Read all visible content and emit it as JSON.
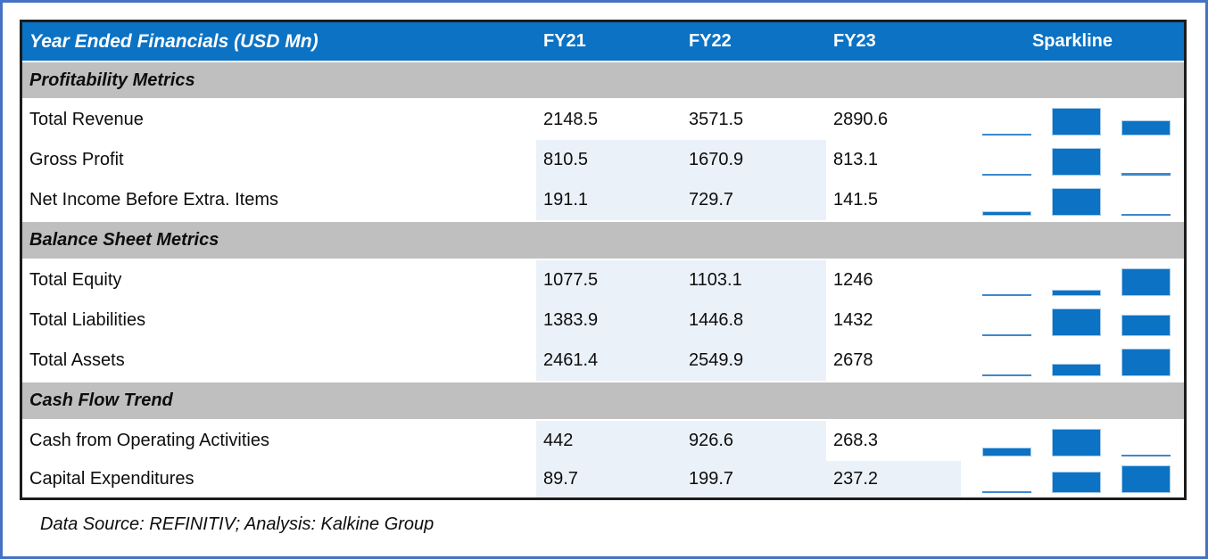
{
  "title": "Year Ended Financials (USD Mn)",
  "sparkline_label": "Sparkline",
  "chart_data": {
    "type": "table",
    "title": "Year Ended Financials (USD Mn)",
    "categories": [
      "FY21",
      "FY22",
      "FY23"
    ],
    "sections": [
      {
        "title": "Profitability Metrics",
        "rows": [
          {
            "label": "Total Revenue",
            "values": [
              2148.5,
              3571.5,
              2890.6
            ]
          },
          {
            "label": "Gross Profit",
            "values": [
              810.5,
              1670.9,
              813.1
            ]
          },
          {
            "label": "Net Income Before Extra. Items",
            "values": [
              191.1,
              729.7,
              141.5
            ]
          }
        ]
      },
      {
        "title": "Balance Sheet Metrics",
        "rows": [
          {
            "label": "Total Equity",
            "values": [
              1077.5,
              1103.1,
              1246
            ]
          },
          {
            "label": "Total Liabilities",
            "values": [
              1383.9,
              1446.8,
              1432
            ]
          },
          {
            "label": "Total Assets",
            "values": [
              2461.4,
              2549.9,
              2678
            ]
          }
        ]
      },
      {
        "title": "Cash Flow Trend",
        "rows": [
          {
            "label": "Cash from Operating Activities",
            "values": [
              442,
              926.6,
              268.3
            ]
          },
          {
            "label": "Capital Expenditures",
            "values": [
              89.7,
              199.7,
              237.2
            ]
          }
        ]
      }
    ],
    "sparkline_type": "bar",
    "sparkline_scaling": "min-max-per-row",
    "legend": "none",
    "grid": "off"
  },
  "footer": {
    "note": "Data Source: REFINITIV; Analysis: Kalkine Group"
  },
  "colors": {
    "header_blue": "#0B72C4",
    "section_gray": "#BFBFBF",
    "cell_shade_blue": "#EBF1F9",
    "frame_blue": "#4472C4",
    "table_border": "#1c1c1c",
    "sparkline_bar_blue": "#0B72C4",
    "sparkline_thin_blue": "#3E88CC",
    "sparkline_bar_edge": "#A9CBEA"
  }
}
